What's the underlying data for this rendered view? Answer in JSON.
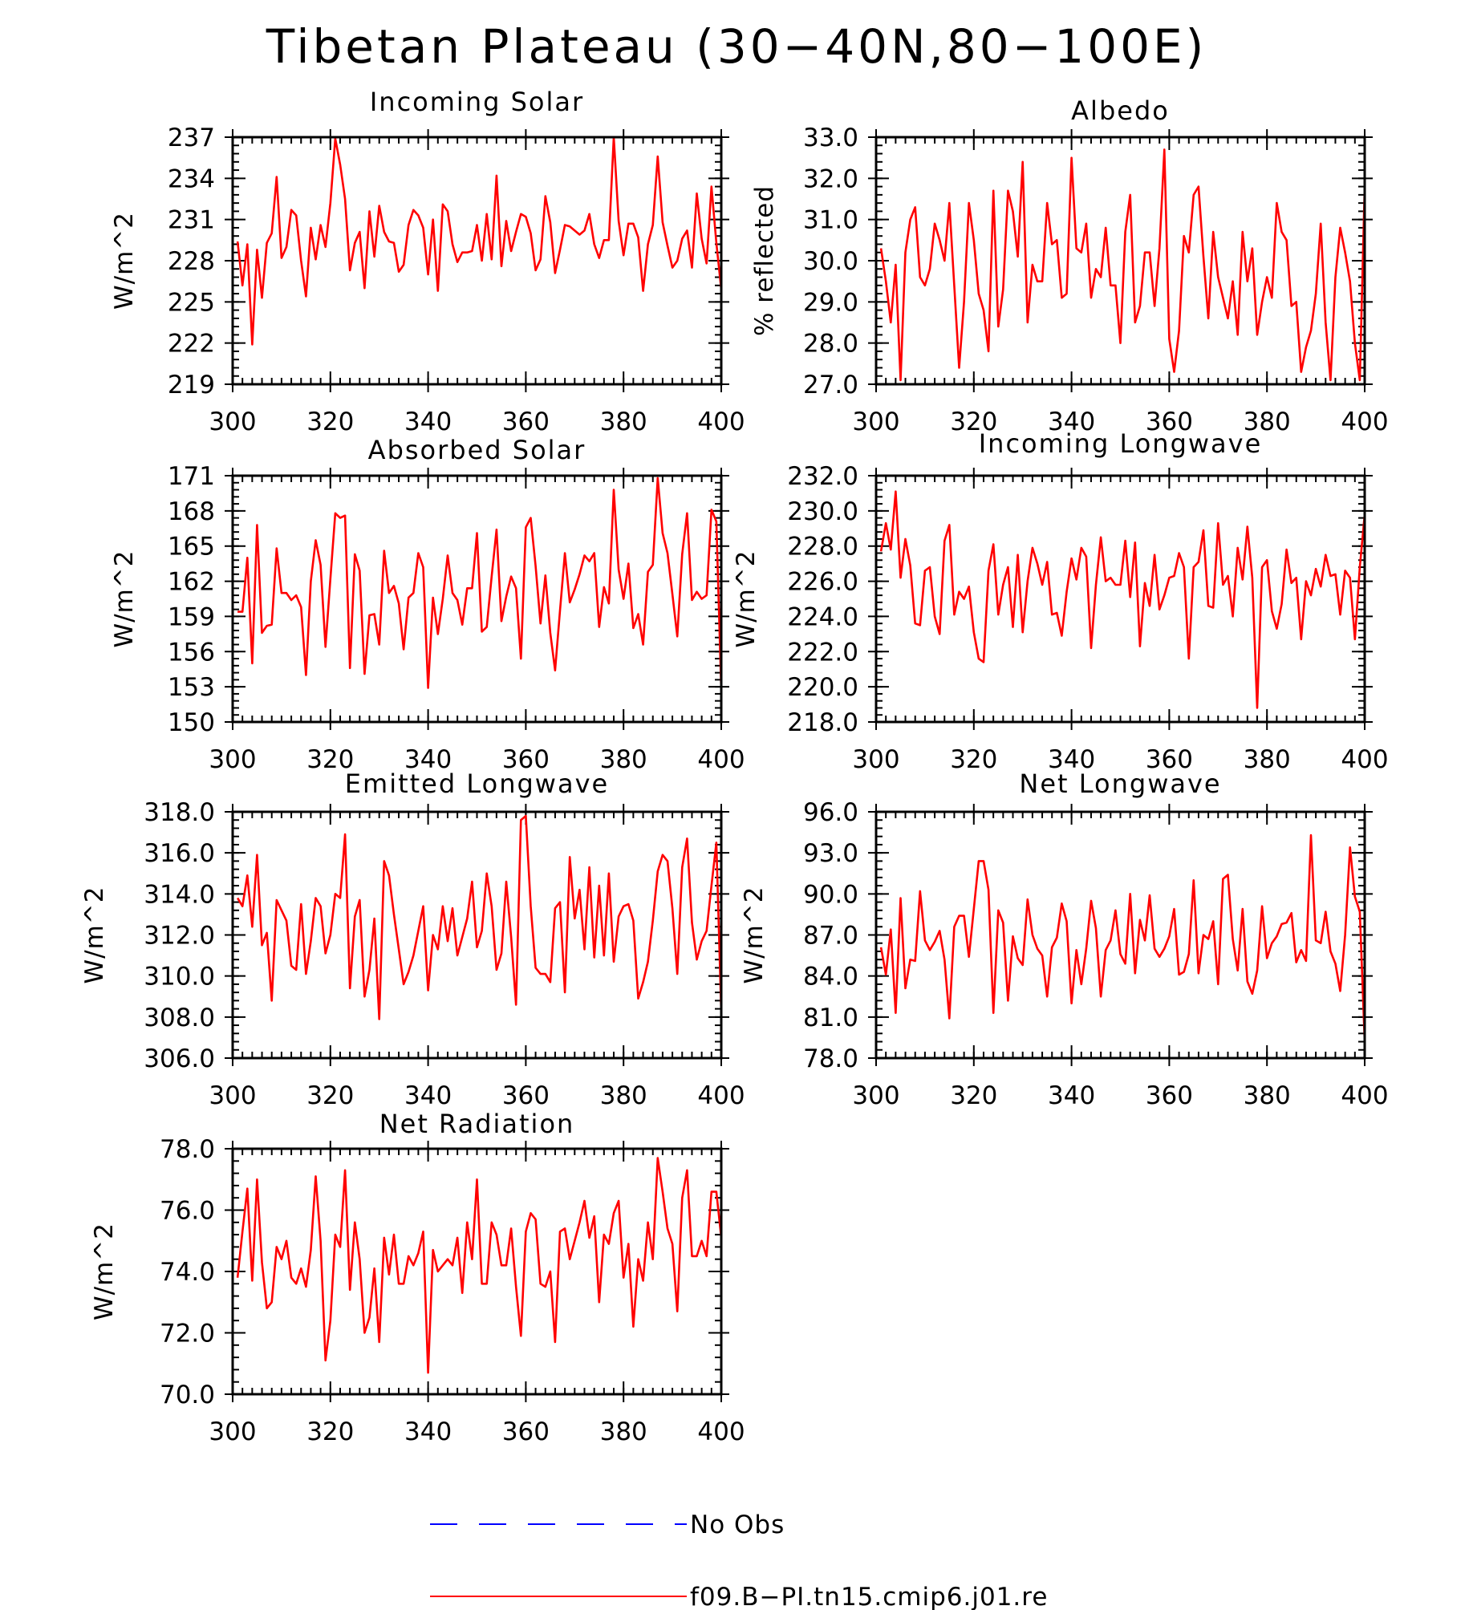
{
  "figure": {
    "title": "Tibetan Plateau (30−40N,80−100E)"
  },
  "colors": {
    "model": "#ff0000",
    "obs": "#0000ff"
  },
  "legend": [
    {
      "label": "No Obs",
      "color": "#0000ff",
      "style": "dashed"
    },
    {
      "label": "f09.B−PI.tn15.cmip6.j01.re",
      "color": "#ff0000",
      "style": "solid"
    }
  ],
  "chart_data": [
    {
      "type": "line",
      "title": "Incoming Solar",
      "ylabel": "W/m^2",
      "xlim": [
        300,
        400
      ],
      "ylim": [
        219,
        237
      ],
      "xticks": [
        "300",
        "320",
        "340",
        "360",
        "380",
        "400"
      ],
      "yticks": [
        "219",
        "222",
        "225",
        "228",
        "231",
        "234",
        "237"
      ],
      "x_start": 301,
      "series": [
        {
          "color": "#ff0000",
          "values": [
            229.4,
            226.2,
            229.2,
            221.9,
            228.8,
            225.3,
            229.3,
            230.0,
            234.1,
            228.2,
            229.0,
            231.7,
            231.3,
            228.0,
            225.4,
            230.4,
            228.1,
            230.6,
            229.0,
            232.2,
            236.9,
            235.0,
            232.5,
            227.3,
            229.3,
            230.1,
            226.0,
            231.6,
            228.3,
            232.0,
            230.1,
            229.4,
            229.3,
            227.2,
            227.7,
            230.6,
            231.7,
            231.3,
            230.4,
            227.0,
            231.0,
            225.8,
            232.1,
            231.6,
            229.2,
            227.9,
            228.6,
            228.6,
            228.7,
            230.6,
            228.0,
            231.4,
            228.1,
            234.2,
            227.6,
            230.9,
            228.7,
            230.1,
            231.4,
            231.2,
            230.0,
            227.3,
            228.1,
            232.7,
            230.8,
            227.1,
            228.8,
            230.6,
            230.5,
            230.2,
            229.9,
            230.2,
            231.4,
            229.2,
            228.2,
            229.5,
            229.5,
            237.0,
            230.9,
            228.4,
            230.7,
            230.7,
            229.7,
            225.8,
            229.2,
            230.6,
            235.6,
            230.8,
            229.1,
            227.5,
            228.0,
            229.6,
            230.2,
            227.5,
            232.9,
            229.6,
            227.8,
            233.4,
            229.3,
            225.9
          ]
        }
      ]
    },
    {
      "type": "line",
      "title": "Albedo",
      "ylabel": "% reflected",
      "xlim": [
        300,
        400
      ],
      "ylim": [
        27,
        33
      ],
      "xticks": [
        "300",
        "320",
        "340",
        "360",
        "380",
        "400"
      ],
      "yticks": [
        "27.0",
        "28.0",
        "29.0",
        "30.0",
        "31.0",
        "32.0",
        "33.0"
      ],
      "x_start": 301,
      "series": [
        {
          "color": "#ff0000",
          "values": [
            30.3,
            29.5,
            28.5,
            29.9,
            27.1,
            30.2,
            31.0,
            31.3,
            29.6,
            29.4,
            29.8,
            30.9,
            30.5,
            30.0,
            31.4,
            29.4,
            27.4,
            29.0,
            31.4,
            30.5,
            29.2,
            28.8,
            27.8,
            31.7,
            28.4,
            29.3,
            31.7,
            31.2,
            30.1,
            32.4,
            28.5,
            29.9,
            29.5,
            29.5,
            31.4,
            30.4,
            30.5,
            29.1,
            29.2,
            32.5,
            30.3,
            30.2,
            30.9,
            29.1,
            29.8,
            29.6,
            30.8,
            29.4,
            29.4,
            28.0,
            30.7,
            31.6,
            28.5,
            28.9,
            30.2,
            30.2,
            28.9,
            30.3,
            32.7,
            28.1,
            27.3,
            28.3,
            30.6,
            30.2,
            31.6,
            31.8,
            30.1,
            28.6,
            30.7,
            29.6,
            29.1,
            28.6,
            29.5,
            28.2,
            30.7,
            29.5,
            30.3,
            28.2,
            29.0,
            29.6,
            29.1,
            31.4,
            30.7,
            30.5,
            28.9,
            29.0,
            27.3,
            27.9,
            28.3,
            29.2,
            30.9,
            28.5,
            27.1,
            29.6,
            30.8,
            30.2,
            29.5,
            28.0,
            27.1,
            31.8
          ]
        }
      ]
    },
    {
      "type": "line",
      "title": "Absorbed Solar",
      "ylabel": "W/m^2",
      "xlim": [
        300,
        400
      ],
      "ylim": [
        150,
        171
      ],
      "xticks": [
        "300",
        "320",
        "340",
        "360",
        "380",
        "400"
      ],
      "yticks": [
        "150",
        "153",
        "156",
        "159",
        "162",
        "165",
        "168",
        "171"
      ],
      "x_start": 301,
      "series": [
        {
          "color": "#ff0000",
          "values": [
            159.4,
            159.4,
            164.0,
            155.0,
            166.8,
            157.6,
            158.2,
            158.3,
            164.8,
            161.0,
            161.0,
            160.4,
            160.8,
            159.8,
            154.0,
            162.0,
            165.5,
            163.4,
            156.4,
            162.2,
            167.8,
            167.4,
            167.6,
            154.6,
            164.3,
            162.9,
            154.1,
            159.1,
            159.2,
            156.6,
            164.6,
            161.0,
            161.6,
            160.1,
            156.2,
            160.6,
            161.0,
            164.4,
            163.2,
            152.9,
            160.6,
            157.5,
            160.5,
            164.2,
            161.0,
            160.4,
            158.3,
            161.4,
            161.4,
            166.1,
            157.7,
            158.1,
            162.4,
            166.4,
            158.6,
            160.7,
            162.4,
            161.4,
            155.4,
            166.6,
            167.4,
            163.3,
            158.4,
            162.5,
            157.6,
            154.4,
            159.5,
            164.4,
            160.2,
            161.3,
            162.6,
            164.2,
            163.7,
            164.4,
            158.1,
            161.5,
            160.1,
            169.8,
            163.0,
            160.5,
            163.5,
            158.0,
            159.2,
            156.6,
            162.8,
            163.4,
            170.8,
            166.1,
            164.4,
            160.9,
            157.3,
            164.3,
            167.8,
            160.4,
            161.1,
            160.5,
            160.8,
            168.1,
            167.1,
            152.7
          ]
        }
      ]
    },
    {
      "type": "line",
      "title": "Incoming Longwave",
      "ylabel": "W/m^2",
      "xlim": [
        300,
        400
      ],
      "ylim": [
        218,
        232
      ],
      "xticks": [
        "300",
        "320",
        "340",
        "360",
        "380",
        "400"
      ],
      "yticks": [
        "218.0",
        "220.0",
        "222.0",
        "224.0",
        "226.0",
        "228.0",
        "230.0",
        "232.0"
      ],
      "x_start": 301,
      "series": [
        {
          "color": "#ff0000",
          "values": [
            227.7,
            229.3,
            227.8,
            231.1,
            226.2,
            228.4,
            226.9,
            223.6,
            223.5,
            226.6,
            226.8,
            224.0,
            223.0,
            228.3,
            229.2,
            224.1,
            225.4,
            225.0,
            225.7,
            223.1,
            221.6,
            221.4,
            226.6,
            228.1,
            224.1,
            225.8,
            226.8,
            223.4,
            227.5,
            223.1,
            226.0,
            227.9,
            227.0,
            225.8,
            227.1,
            224.1,
            224.2,
            222.9,
            225.4,
            227.3,
            226.1,
            227.9,
            227.4,
            222.2,
            225.8,
            228.5,
            226.0,
            226.2,
            225.8,
            225.8,
            228.3,
            225.1,
            228.2,
            222.3,
            225.9,
            224.6,
            227.5,
            224.4,
            225.2,
            226.2,
            226.3,
            227.6,
            226.8,
            221.6,
            226.8,
            227.1,
            228.9,
            224.6,
            224.5,
            229.3,
            225.8,
            226.3,
            224.0,
            227.9,
            226.1,
            229.1,
            226.2,
            218.8,
            226.8,
            227.2,
            224.3,
            223.3,
            224.7,
            227.8,
            225.9,
            226.2,
            222.7,
            226.0,
            225.2,
            226.7,
            225.7,
            227.5,
            226.3,
            226.4,
            224.1,
            226.6,
            226.2,
            222.7,
            226.8,
            229.8
          ]
        }
      ]
    },
    {
      "type": "line",
      "title": "Emitted Longwave",
      "ylabel": "W/m^2",
      "xlim": [
        300,
        400
      ],
      "ylim": [
        306,
        318
      ],
      "xticks": [
        "300",
        "320",
        "340",
        "360",
        "380",
        "400"
      ],
      "yticks": [
        "306.0",
        "308.0",
        "310.0",
        "312.0",
        "314.0",
        "316.0",
        "318.0"
      ],
      "x_start": 301,
      "series": [
        {
          "color": "#ff0000",
          "values": [
            313.8,
            313.4,
            314.9,
            312.4,
            315.9,
            311.5,
            312.1,
            308.8,
            313.7,
            313.2,
            312.7,
            310.5,
            310.3,
            313.5,
            310.1,
            311.7,
            313.8,
            313.4,
            311.1,
            312.0,
            314.0,
            313.8,
            316.9,
            309.4,
            312.9,
            313.7,
            309.0,
            310.3,
            312.8,
            307.9,
            315.6,
            314.9,
            313.0,
            311.3,
            309.6,
            310.2,
            311.0,
            312.2,
            313.4,
            309.3,
            312.0,
            311.3,
            313.4,
            311.7,
            313.3,
            311.0,
            311.9,
            312.8,
            314.6,
            311.4,
            312.2,
            315.0,
            313.4,
            310.3,
            311.1,
            314.6,
            311.9,
            308.6,
            317.6,
            317.8,
            313.4,
            310.4,
            310.1,
            310.1,
            309.7,
            313.3,
            313.6,
            309.2,
            315.8,
            312.8,
            314.2,
            311.3,
            315.3,
            310.9,
            314.4,
            311.0,
            315.0,
            310.7,
            312.9,
            313.4,
            313.5,
            312.7,
            308.9,
            309.7,
            310.7,
            312.7,
            315.1,
            315.9,
            315.6,
            313.3,
            310.1,
            315.3,
            316.7,
            312.6,
            310.8,
            311.7,
            312.2,
            314.4,
            316.5,
            308.2
          ]
        }
      ]
    },
    {
      "type": "line",
      "title": "Net Longwave",
      "ylabel": "W/m^2",
      "xlim": [
        300,
        400
      ],
      "ylim": [
        78,
        96
      ],
      "xticks": [
        "300",
        "320",
        "340",
        "360",
        "380",
        "400"
      ],
      "yticks": [
        "78.0",
        "81.0",
        "84.0",
        "87.0",
        "90.0",
        "93.0",
        "96.0"
      ],
      "x_start": 301,
      "series": [
        {
          "color": "#ff0000",
          "values": [
            86.1,
            84.1,
            87.4,
            81.3,
            89.7,
            83.1,
            85.2,
            85.1,
            90.2,
            86.6,
            85.9,
            86.5,
            87.3,
            85.2,
            80.9,
            87.6,
            88.4,
            88.4,
            85.4,
            88.9,
            92.4,
            92.4,
            90.3,
            81.3,
            88.8,
            87.9,
            82.2,
            86.9,
            85.3,
            84.8,
            89.6,
            87.0,
            86.0,
            85.5,
            82.5,
            86.1,
            86.8,
            89.3,
            88.0,
            82.0,
            85.9,
            83.4,
            86.0,
            89.5,
            87.5,
            82.5,
            85.9,
            86.6,
            88.8,
            85.6,
            84.9,
            90.0,
            84.2,
            88.1,
            86.6,
            89.9,
            86.0,
            85.4,
            86.0,
            86.9,
            88.9,
            84.1,
            84.3,
            85.6,
            91.0,
            84.2,
            87.0,
            86.7,
            88.0,
            83.4,
            91.1,
            91.4,
            86.7,
            84.4,
            88.9,
            83.6,
            82.7,
            84.4,
            89.1,
            85.3,
            86.4,
            86.9,
            87.8,
            87.9,
            88.6,
            85.0,
            85.9,
            85.1,
            94.3,
            86.6,
            86.4,
            88.7,
            85.8,
            84.9,
            82.9,
            87.0,
            93.4,
            89.8,
            88.7,
            79.2
          ]
        }
      ]
    },
    {
      "type": "line",
      "title": "Net Radiation",
      "ylabel": "W/m^2",
      "xlim": [
        300,
        400
      ],
      "ylim": [
        70,
        78
      ],
      "xticks": [
        "300",
        "320",
        "340",
        "360",
        "380",
        "400"
      ],
      "yticks": [
        "70.0",
        "72.0",
        "74.0",
        "76.0",
        "78.0"
      ],
      "x_start": 301,
      "series": [
        {
          "color": "#ff0000",
          "values": [
            73.8,
            75.3,
            76.7,
            73.7,
            77.0,
            74.3,
            72.8,
            73.0,
            74.8,
            74.4,
            75.0,
            73.8,
            73.6,
            74.1,
            73.5,
            74.7,
            77.1,
            75.0,
            71.1,
            72.4,
            75.2,
            74.8,
            77.3,
            73.4,
            75.6,
            74.4,
            72.0,
            72.5,
            74.1,
            71.7,
            75.1,
            73.9,
            75.2,
            73.6,
            73.6,
            74.5,
            74.2,
            74.6,
            75.3,
            70.7,
            74.7,
            74.0,
            74.2,
            74.4,
            74.2,
            75.1,
            73.3,
            75.6,
            74.4,
            77.0,
            73.6,
            73.6,
            75.6,
            75.2,
            74.2,
            74.2,
            75.4,
            73.5,
            71.9,
            75.3,
            75.9,
            75.7,
            73.6,
            73.5,
            74.0,
            71.7,
            75.3,
            75.4,
            74.4,
            75.0,
            75.6,
            76.3,
            75.1,
            75.8,
            73.0,
            75.2,
            74.9,
            75.9,
            76.3,
            73.8,
            74.9,
            72.2,
            74.4,
            73.7,
            75.6,
            74.4,
            77.7,
            76.6,
            75.4,
            74.9,
            72.7,
            76.4,
            77.3,
            74.5,
            74.5,
            75.0,
            74.5,
            76.6,
            76.6,
            75.1
          ]
        }
      ]
    }
  ]
}
